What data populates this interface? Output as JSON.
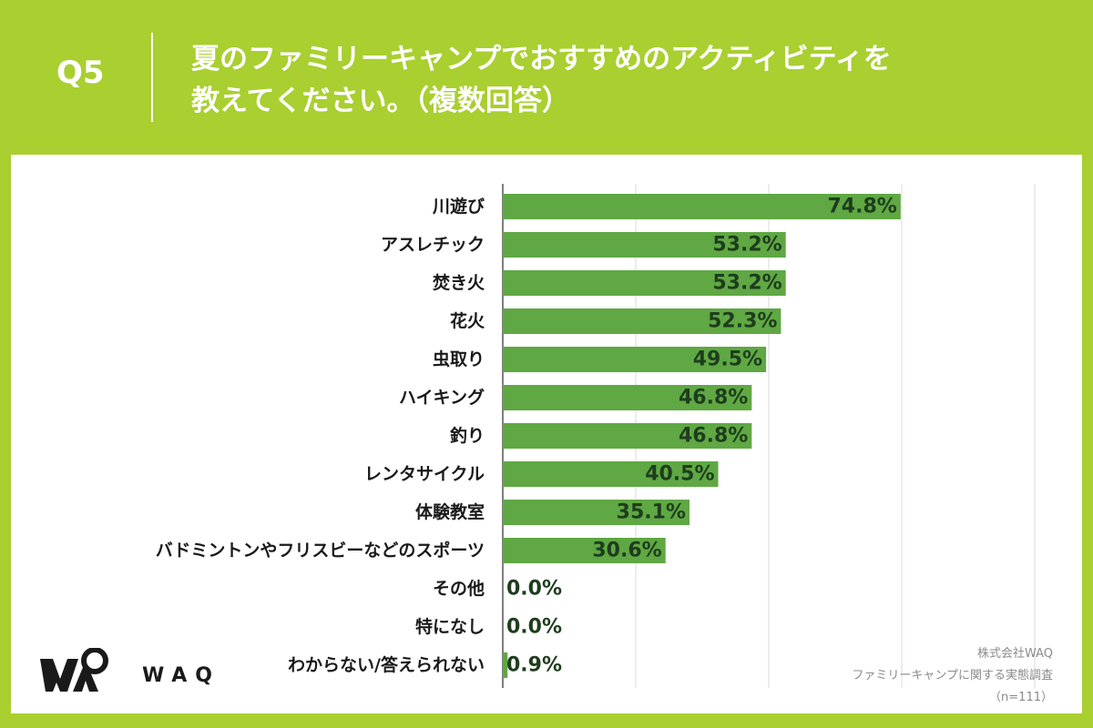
{
  "header": {
    "question_number": "Q5",
    "title_line1": "夏のファミリーキャンプでおすすめのアクティビティを",
    "title_line2": "教えてください。（複数回答）"
  },
  "logo": {
    "text": "WAQ"
  },
  "source": {
    "company": "株式会社WAQ",
    "survey": "ファミリーキャンプに関する実態調査",
    "sample": "（n=111）"
  },
  "colors": {
    "background": "#a9cf30",
    "bar": "#5fa843",
    "value_label": "#1e3d1e",
    "grid": "#d9d9d9"
  },
  "chart_data": {
    "type": "bar",
    "orientation": "horizontal",
    "title": "夏のファミリーキャンプでおすすめのアクティビティを教えてください。（複数回答）",
    "unit": "%",
    "xlim": [
      0,
      100
    ],
    "grid": true,
    "categories": [
      "川遊び",
      "アスレチック",
      "焚き火",
      "花火",
      "虫取り",
      "ハイキング",
      "釣り",
      "レンタサイクル",
      "体験教室",
      "バドミントンやフリスビーなどのスポーツ",
      "その他",
      "特になし",
      "わからない/答えられない"
    ],
    "values": [
      74.8,
      53.2,
      53.2,
      52.3,
      49.5,
      46.8,
      46.8,
      40.5,
      35.1,
      30.6,
      0.0,
      0.0,
      0.9
    ],
    "value_labels": [
      "74.8%",
      "53.2%",
      "53.2%",
      "52.3%",
      "49.5%",
      "46.8%",
      "46.8%",
      "40.5%",
      "35.1%",
      "30.6%",
      "0.0%",
      "0.0%",
      "0.9%"
    ]
  }
}
